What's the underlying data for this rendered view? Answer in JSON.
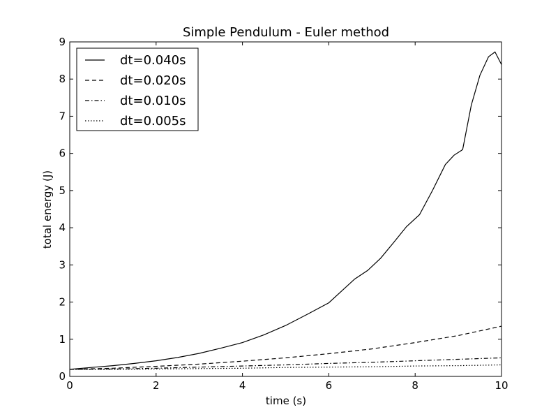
{
  "chart_data": {
    "type": "line",
    "title": "Simple Pendulum - Euler method",
    "xlabel": "time (s)",
    "ylabel": "total energy (J)",
    "xlim": [
      0,
      10
    ],
    "ylim": [
      0,
      9
    ],
    "xticks": [
      0,
      2,
      4,
      6,
      8,
      10
    ],
    "yticks": [
      0,
      1,
      2,
      3,
      4,
      5,
      6,
      7,
      8,
      9
    ],
    "grid": false,
    "legend_position": "top-left",
    "series": [
      {
        "name": "dt=0.040s",
        "dash": "solid",
        "x": [
          0,
          0.5,
          1,
          1.5,
          2,
          2.5,
          3,
          3.5,
          4,
          4.5,
          5,
          5.5,
          6,
          6.3,
          6.6,
          6.9,
          7.2,
          7.5,
          7.8,
          8.1,
          8.4,
          8.7,
          8.9,
          9.1,
          9.3,
          9.5,
          9.7,
          9.85,
          10
        ],
        "y": [
          0.19,
          0.24,
          0.29,
          0.35,
          0.42,
          0.51,
          0.62,
          0.76,
          0.91,
          1.12,
          1.37,
          1.67,
          1.98,
          2.3,
          2.62,
          2.85,
          3.18,
          3.6,
          4.03,
          4.35,
          5.0,
          5.7,
          5.95,
          6.1,
          7.3,
          8.1,
          8.6,
          8.73,
          8.39
        ]
      },
      {
        "name": "dt=0.020s",
        "dash": "dashed",
        "x": [
          0,
          1,
          2,
          3,
          4,
          5,
          6,
          7,
          8,
          9,
          10
        ],
        "y": [
          0.19,
          0.22,
          0.27,
          0.33,
          0.41,
          0.5,
          0.61,
          0.74,
          0.91,
          1.1,
          1.35
        ]
      },
      {
        "name": "dt=0.010s",
        "dash": "dashdot",
        "x": [
          0,
          1,
          2,
          3,
          4,
          5,
          6,
          7,
          8,
          9,
          10
        ],
        "y": [
          0.19,
          0.2,
          0.22,
          0.25,
          0.28,
          0.31,
          0.35,
          0.38,
          0.42,
          0.46,
          0.5
        ]
      },
      {
        "name": "dt=0.005s",
        "dash": "dotted",
        "x": [
          0,
          1,
          2,
          3,
          4,
          5,
          6,
          7,
          8,
          9,
          10
        ],
        "y": [
          0.19,
          0.19,
          0.2,
          0.21,
          0.22,
          0.24,
          0.25,
          0.26,
          0.28,
          0.29,
          0.31
        ]
      }
    ]
  }
}
